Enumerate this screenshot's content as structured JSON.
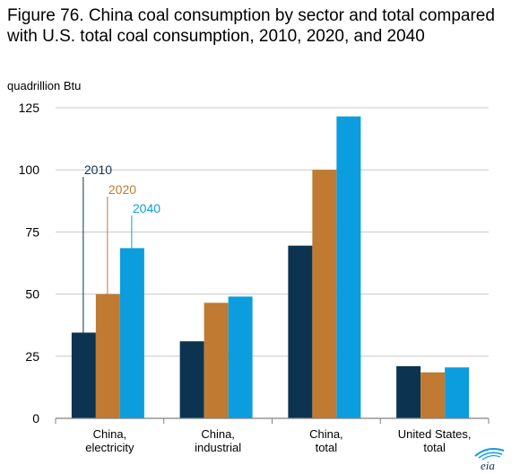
{
  "chart_data": {
    "type": "bar",
    "title": "Figure 76. China coal consumption by sector and total compared with U.S. total coal consumption, 2010, 2020, and 2040",
    "ylabel": "quadrillion Btu",
    "ylim": [
      0,
      125
    ],
    "yticks": [
      0,
      25,
      50,
      75,
      100,
      125
    ],
    "grid": true,
    "categories": [
      [
        "China,",
        "electricity"
      ],
      [
        "China,",
        "industrial"
      ],
      [
        "China,",
        "total"
      ],
      [
        "United States,",
        "total"
      ]
    ],
    "series": [
      {
        "name": "2010",
        "color": "#0c3451",
        "values": [
          34.5,
          31,
          69.5,
          21
        ]
      },
      {
        "name": "2020",
        "color": "#c07a31",
        "values": [
          50,
          46.5,
          100,
          18.5
        ]
      },
      {
        "name": "2040",
        "color": "#0c9ddf",
        "values": [
          68.5,
          49,
          121.5,
          20.5
        ]
      }
    ],
    "legend": "inline leader labels above first category"
  },
  "logo_text": "eia"
}
